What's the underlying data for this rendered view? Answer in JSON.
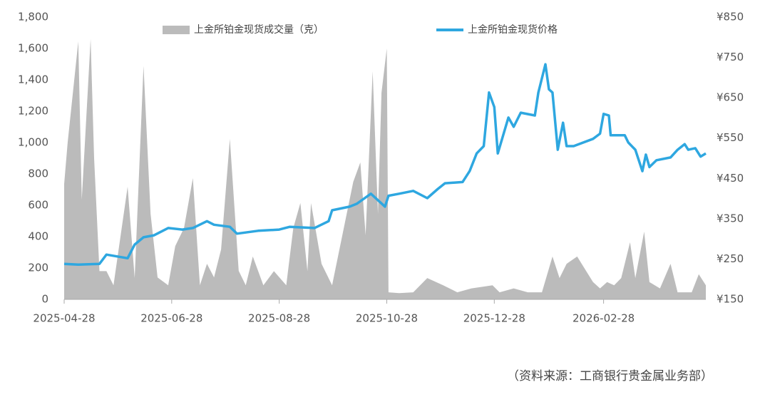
{
  "chart_data": {
    "type": "combo",
    "x_type": "date",
    "xlim": [
      "2025-04-28",
      "2026-04-27"
    ],
    "xticks": [
      "2025-04-28",
      "2025-06-28",
      "2025-08-28",
      "2025-10-28",
      "2025-12-28",
      "2026-02-28"
    ],
    "ylim": [
      0,
      1800
    ],
    "yticks": [
      0,
      200,
      400,
      600,
      800,
      {
        "value": 1000,
        "label": "1,000"
      },
      {
        "value": 1200,
        "label": "1,200"
      },
      {
        "value": 1400,
        "label": "1,400"
      },
      {
        "value": 1600,
        "label": "1,600"
      },
      {
        "value": 1800,
        "label": "1,800"
      }
    ],
    "y2lim": [
      150,
      850
    ],
    "y2ticks": [
      {
        "value": 150,
        "label": "¥150"
      },
      {
        "value": 250,
        "label": "¥250"
      },
      {
        "value": 350,
        "label": "¥350"
      },
      {
        "value": 450,
        "label": "¥450"
      },
      {
        "value": 550,
        "label": "¥550"
      },
      {
        "value": 650,
        "label": "¥650"
      },
      {
        "value": 750,
        "label": "¥750"
      },
      {
        "value": 850,
        "label": "¥850"
      }
    ],
    "legend_position": "top",
    "source": "（资料来源：工商银行贵金属业务部）",
    "series": [
      {
        "name": "上金所铂金现货成交量（克）",
        "type": "area",
        "axis": "y",
        "color": "#bbbbbb",
        "x": [
          "2025-04-28",
          "2025-04-30",
          "2025-05-06",
          "2025-05-08",
          "2025-05-13",
          "2025-05-15",
          "2025-05-18",
          "2025-05-22",
          "2025-05-26",
          "2025-06-03",
          "2025-06-07",
          "2025-06-12",
          "2025-06-16",
          "2025-06-20",
          "2025-06-26",
          "2025-06-30",
          "2025-07-05",
          "2025-07-10",
          "2025-07-14",
          "2025-07-18",
          "2025-07-22",
          "2025-07-26",
          "2025-07-31",
          "2025-08-05",
          "2025-08-09",
          "2025-08-13",
          "2025-08-19",
          "2025-08-25",
          "2025-09-01",
          "2025-09-05",
          "2025-09-09",
          "2025-09-13",
          "2025-09-15",
          "2025-09-21",
          "2025-09-27",
          "2025-10-09",
          "2025-10-13",
          "2025-10-16",
          "2025-10-20",
          "2025-10-23",
          "2025-10-25",
          "2025-10-28",
          "2025-10-29",
          "2025-11-04",
          "2025-11-12",
          "2025-11-20",
          "2025-11-29",
          "2025-12-07",
          "2025-12-15",
          "2025-12-27",
          "2025-12-31",
          "2026-01-08",
          "2026-01-16",
          "2026-01-24",
          "2026-01-30",
          "2026-02-03",
          "2026-02-07",
          "2026-02-13",
          "2026-02-22",
          "2026-02-26",
          "2026-03-02",
          "2026-03-06",
          "2026-03-10",
          "2026-03-15",
          "2026-03-18",
          "2026-03-23",
          "2026-03-26",
          "2026-04-01",
          "2026-04-07",
          "2026-04-11",
          "2026-04-19",
          "2026-04-23",
          "2026-04-27"
        ],
        "values": [
          736,
          1000,
          1645,
          636,
          1660,
          900,
          180,
          180,
          90,
          718,
          136,
          1490,
          545,
          140,
          90,
          340,
          455,
          773,
          90,
          227,
          140,
          318,
          1023,
          182,
          90,
          273,
          90,
          180,
          90,
          455,
          614,
          180,
          614,
          227,
          90,
          750,
          873,
          409,
          1455,
          545,
          1318,
          1600,
          45,
          40,
          45,
          136,
          90,
          45,
          70,
          90,
          45,
          70,
          45,
          45,
          273,
          136,
          227,
          273,
          110,
          70,
          110,
          90,
          136,
          364,
          136,
          432,
          110,
          70,
          227,
          45,
          45,
          160,
          90
        ]
      },
      {
        "name": "上金所铂金现货价格",
        "type": "line",
        "axis": "y2",
        "color": "#2ea7e0",
        "x": [
          "2025-04-28",
          "2025-05-06",
          "2025-05-18",
          "2025-05-22",
          "2025-06-03",
          "2025-06-07",
          "2025-06-12",
          "2025-06-18",
          "2025-06-26",
          "2025-07-04",
          "2025-07-10",
          "2025-07-18",
          "2025-07-22",
          "2025-07-31",
          "2025-08-04",
          "2025-08-16",
          "2025-08-28",
          "2025-09-03",
          "2025-09-17",
          "2025-09-25",
          "2025-09-27",
          "2025-10-07",
          "2025-10-11",
          "2025-10-19",
          "2025-10-27",
          "2025-10-29",
          "2025-11-04",
          "2025-11-12",
          "2025-11-20",
          "2025-11-26",
          "2025-11-30",
          "2025-12-10",
          "2025-12-14",
          "2025-12-18",
          "2025-12-22",
          "2025-12-25",
          "2025-12-28",
          "2025-12-30",
          "2026-01-05",
          "2026-01-08",
          "2026-01-12",
          "2026-01-20",
          "2026-01-22",
          "2026-01-26",
          "2026-01-28",
          "2026-01-30",
          "2026-02-02",
          "2026-02-05",
          "2026-02-07",
          "2026-02-11",
          "2026-02-22",
          "2026-02-26",
          "2026-02-28",
          "2026-03-03",
          "2026-03-04",
          "2026-03-12",
          "2026-03-14",
          "2026-03-18",
          "2026-03-22",
          "2026-03-24",
          "2026-03-26",
          "2026-03-30",
          "2026-04-07",
          "2026-04-11",
          "2026-04-15",
          "2026-04-17",
          "2026-04-21",
          "2026-04-24",
          "2026-04-27"
        ],
        "values": [
          238,
          236,
          238,
          261,
          252,
          286,
          304,
          309,
          327,
          323,
          327,
          344,
          335,
          330,
          313,
          320,
          323,
          330,
          327,
          344,
          371,
          380,
          387,
          412,
          380,
          407,
          412,
          419,
          401,
          424,
          438,
          441,
          468,
          512,
          530,
          663,
          627,
          512,
          601,
          578,
          613,
          606,
          663,
          733,
          671,
          663,
          521,
          588,
          530,
          530,
          548,
          561,
          610,
          606,
          557,
          557,
          539,
          521,
          468,
          509,
          478,
          495,
          502,
          521,
          535,
          521,
          525,
          504,
          512
        ]
      }
    ]
  }
}
